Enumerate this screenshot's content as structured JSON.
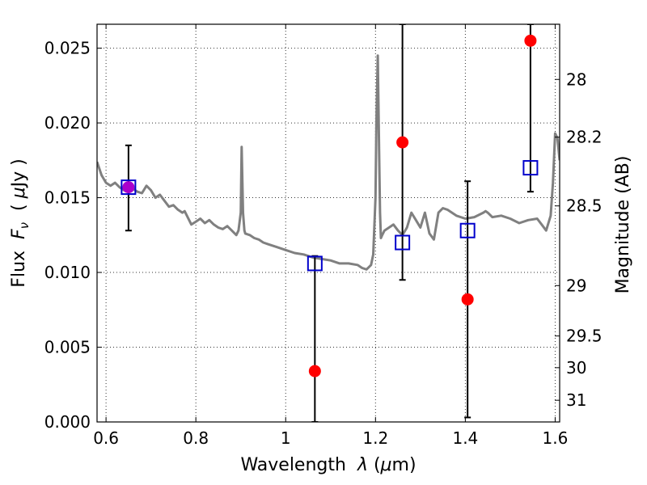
{
  "chart_data": {
    "type": "scatter",
    "title": "",
    "xlabel_parts": [
      "Wavelength  ",
      "λ",
      " (",
      "μ",
      "m)"
    ],
    "ylabel_parts": [
      "Flux  ",
      "F",
      "ν",
      "  ( ",
      "μ",
      "Jy )"
    ],
    "y2label": "Magnitude (AB)",
    "xlim": [
      0.58,
      1.61
    ],
    "ylim": [
      0.0,
      0.0266
    ],
    "grid": true,
    "x_ticks": [
      0.6,
      0.8,
      1.0,
      1.2,
      1.4,
      1.6
    ],
    "x_tick_labels": [
      "0.6",
      "0.8",
      "1",
      "1.2",
      "1.4",
      "1.6"
    ],
    "y_ticks": [
      0.0,
      0.005,
      0.01,
      0.015,
      0.02,
      0.025
    ],
    "y_tick_labels": [
      "0.000",
      "0.005",
      "0.010",
      "0.015",
      "0.020",
      "0.025"
    ],
    "y2_ticks": [
      {
        "label": "28",
        "flux": 0.02291
      },
      {
        "label": "28.2",
        "flux": 0.01905
      },
      {
        "label": "28.5",
        "flux": 0.01445
      },
      {
        "label": "29",
        "flux": 0.00912
      },
      {
        "label": "29.5",
        "flux": 0.00575
      },
      {
        "label": "30",
        "flux": 0.00363
      },
      {
        "label": "31",
        "flux": 0.00145
      }
    ],
    "model_spectrum": {
      "color": "#808080",
      "x": [
        0.58,
        0.59,
        0.6,
        0.61,
        0.62,
        0.63,
        0.64,
        0.65,
        0.66,
        0.67,
        0.68,
        0.69,
        0.7,
        0.71,
        0.72,
        0.73,
        0.74,
        0.75,
        0.76,
        0.77,
        0.775,
        0.78,
        0.79,
        0.8,
        0.81,
        0.82,
        0.83,
        0.84,
        0.85,
        0.86,
        0.87,
        0.88,
        0.89,
        0.895,
        0.9,
        0.902,
        0.905,
        0.908,
        0.91,
        0.92,
        0.93,
        0.94,
        0.95,
        0.96,
        0.98,
        1.0,
        1.02,
        1.04,
        1.06,
        1.08,
        1.1,
        1.12,
        1.14,
        1.16,
        1.17,
        1.18,
        1.19,
        1.195,
        1.2,
        1.202,
        1.205,
        1.208,
        1.21,
        1.212,
        1.215,
        1.22,
        1.23,
        1.24,
        1.25,
        1.26,
        1.27,
        1.28,
        1.29,
        1.3,
        1.31,
        1.32,
        1.33,
        1.34,
        1.35,
        1.36,
        1.38,
        1.4,
        1.42,
        1.44,
        1.445,
        1.45,
        1.46,
        1.48,
        1.5,
        1.52,
        1.54,
        1.56,
        1.57,
        1.58,
        1.59,
        1.595,
        1.6,
        1.605,
        1.61
      ],
      "y": [
        0.0174,
        0.0165,
        0.016,
        0.0158,
        0.016,
        0.0157,
        0.0155,
        0.016,
        0.0156,
        0.0154,
        0.0153,
        0.0158,
        0.0155,
        0.015,
        0.0152,
        0.0148,
        0.0144,
        0.0145,
        0.0142,
        0.014,
        0.0141,
        0.0138,
        0.0132,
        0.0134,
        0.0136,
        0.0133,
        0.0135,
        0.0132,
        0.013,
        0.0129,
        0.0131,
        0.0128,
        0.0125,
        0.0128,
        0.014,
        0.0184,
        0.014,
        0.0128,
        0.0126,
        0.0125,
        0.0123,
        0.0122,
        0.012,
        0.0119,
        0.0117,
        0.0115,
        0.0113,
        0.0112,
        0.011,
        0.0109,
        0.0108,
        0.0106,
        0.0106,
        0.0105,
        0.0103,
        0.0102,
        0.0105,
        0.0112,
        0.015,
        0.02,
        0.0245,
        0.018,
        0.014,
        0.0123,
        0.0125,
        0.0128,
        0.013,
        0.0132,
        0.0128,
        0.0125,
        0.013,
        0.014,
        0.0135,
        0.013,
        0.014,
        0.0126,
        0.0122,
        0.014,
        0.0143,
        0.0142,
        0.0138,
        0.0136,
        0.0137,
        0.014,
        0.0141,
        0.014,
        0.0137,
        0.0138,
        0.0136,
        0.0133,
        0.0135,
        0.0136,
        0.0132,
        0.0128,
        0.0138,
        0.016,
        0.0193,
        0.019,
        0.0175
      ]
    },
    "series": [
      {
        "marker": "circle",
        "color": "#ff0000",
        "x": [
          0.65,
          1.065,
          1.26,
          1.405,
          1.545
        ],
        "y": [
          0.0157,
          0.0034,
          0.0187,
          0.0082,
          0.0255
        ]
      },
      {
        "marker": "square-open",
        "color": "#0000cc",
        "x": [
          0.65,
          1.065,
          1.26,
          1.405,
          1.545
        ],
        "y": [
          0.0157,
          0.0106,
          0.012,
          0.0128,
          0.017
        ],
        "yerr_low": [
          0.0128,
          0.0,
          0.0095,
          0.0003,
          0.0154
        ],
        "yerr_high": [
          0.0185,
          0.0111,
          0.0266,
          0.0161,
          0.0266
        ]
      }
    ],
    "overlap_color": "#aa00cc"
  }
}
